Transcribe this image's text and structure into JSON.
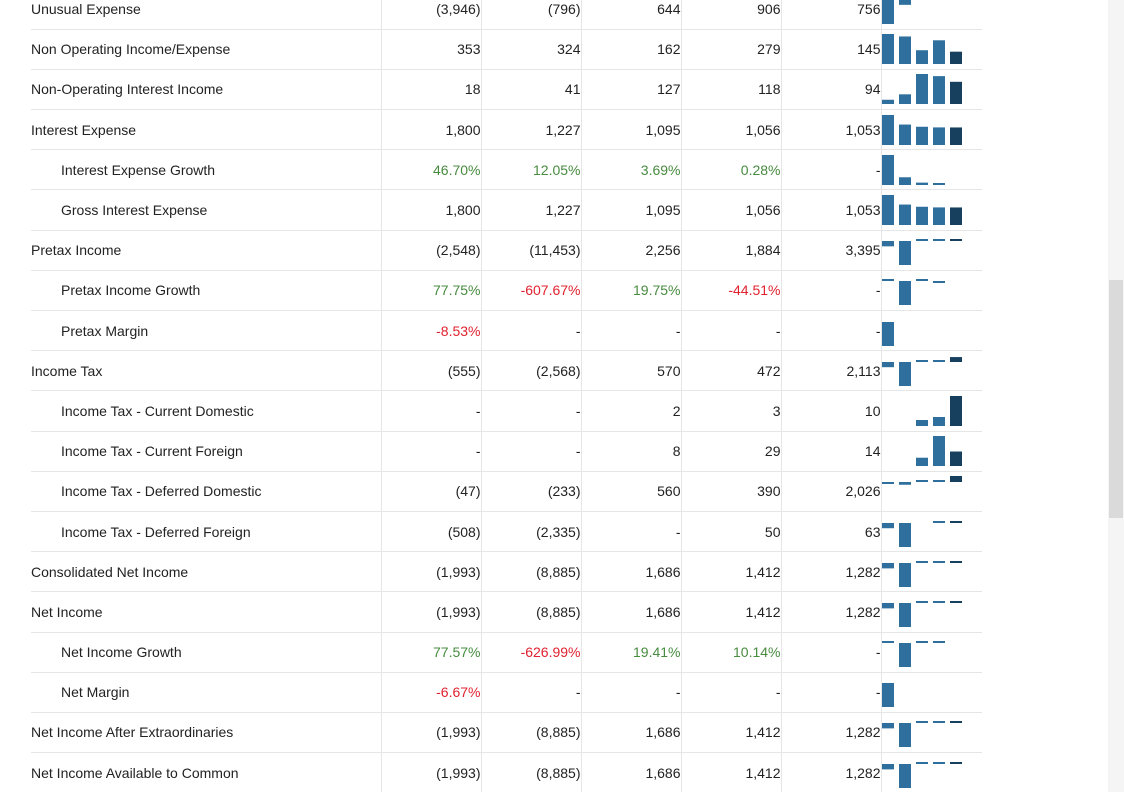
{
  "colors": {
    "bar": "#2e6f9e",
    "bar_latest": "#17405f",
    "positive": "#478b3f",
    "negative": "#e0212f",
    "text": "#222222",
    "border": "#e6e6e6"
  },
  "rows": [
    {
      "label": "Unusual Expense",
      "indent": false,
      "type": "num",
      "values": [
        "(3,946)",
        "(796)",
        "644",
        "906",
        "756"
      ],
      "spark": [
        -3946,
        -796,
        644,
        906,
        756
      ]
    },
    {
      "label": "Non Operating Income/Expense",
      "indent": false,
      "type": "num",
      "values": [
        "353",
        "324",
        "162",
        "279",
        "145"
      ],
      "spark": [
        353,
        324,
        162,
        279,
        145
      ]
    },
    {
      "label": "Non-Operating Interest Income",
      "indent": false,
      "type": "num",
      "values": [
        "18",
        "41",
        "127",
        "118",
        "94"
      ],
      "spark": [
        18,
        41,
        127,
        118,
        94
      ]
    },
    {
      "label": "Interest Expense",
      "indent": false,
      "type": "num",
      "values": [
        "1,800",
        "1,227",
        "1,095",
        "1,056",
        "1,053"
      ],
      "spark": [
        1800,
        1227,
        1095,
        1056,
        1053
      ]
    },
    {
      "label": "Interest Expense Growth",
      "indent": true,
      "type": "pct",
      "values": [
        "46.70%",
        "12.05%",
        "3.69%",
        "0.28%",
        "-"
      ],
      "spark": [
        46.7,
        12.05,
        3.69,
        0.28,
        null
      ]
    },
    {
      "label": "Gross Interest Expense",
      "indent": true,
      "type": "num",
      "values": [
        "1,800",
        "1,227",
        "1,095",
        "1,056",
        "1,053"
      ],
      "spark": [
        1800,
        1227,
        1095,
        1056,
        1053
      ]
    },
    {
      "label": "Pretax Income",
      "indent": false,
      "type": "num",
      "values": [
        "(2,548)",
        "(11,453)",
        "2,256",
        "1,884",
        "3,395"
      ],
      "spark": [
        -2548,
        -11453,
        2256,
        1884,
        3395
      ]
    },
    {
      "label": "Pretax Income Growth",
      "indent": true,
      "type": "pct",
      "values": [
        "77.75%",
        "-607.67%",
        "19.75%",
        "-44.51%",
        "-"
      ],
      "spark": [
        77.75,
        -607.67,
        19.75,
        -44.51,
        null
      ]
    },
    {
      "label": "Pretax Margin",
      "indent": true,
      "type": "pct",
      "values": [
        "-8.53%",
        "-",
        "-",
        "-",
        "-"
      ],
      "spark": [
        -8.53,
        null,
        null,
        null,
        null
      ]
    },
    {
      "label": "Income Tax",
      "indent": false,
      "type": "num",
      "values": [
        "(555)",
        "(2,568)",
        "570",
        "472",
        "2,113"
      ],
      "spark": [
        -555,
        -2568,
        570,
        472,
        2113
      ]
    },
    {
      "label": "Income Tax - Current Domestic",
      "indent": true,
      "type": "num",
      "values": [
        "-",
        "-",
        "2",
        "3",
        "10"
      ],
      "spark": [
        null,
        null,
        2,
        3,
        10
      ]
    },
    {
      "label": "Income Tax - Current Foreign",
      "indent": true,
      "type": "num",
      "values": [
        "-",
        "-",
        "8",
        "29",
        "14"
      ],
      "spark": [
        null,
        null,
        8,
        29,
        14
      ]
    },
    {
      "label": "Income Tax - Deferred Domestic",
      "indent": true,
      "type": "num",
      "values": [
        "(47)",
        "(233)",
        "560",
        "390",
        "2,026"
      ],
      "spark": [
        -47,
        -233,
        560,
        390,
        2026
      ]
    },
    {
      "label": "Income Tax - Deferred Foreign",
      "indent": true,
      "type": "num",
      "values": [
        "(508)",
        "(2,335)",
        "-",
        "50",
        "63"
      ],
      "spark": [
        -508,
        -2335,
        null,
        50,
        63
      ]
    },
    {
      "label": "Consolidated Net Income",
      "indent": false,
      "type": "num",
      "values": [
        "(1,993)",
        "(8,885)",
        "1,686",
        "1,412",
        "1,282"
      ],
      "spark": [
        -1993,
        -8885,
        1686,
        1412,
        1282
      ]
    },
    {
      "label": "Net Income",
      "indent": false,
      "type": "num",
      "values": [
        "(1,993)",
        "(8,885)",
        "1,686",
        "1,412",
        "1,282"
      ],
      "spark": [
        -1993,
        -8885,
        1686,
        1412,
        1282
      ]
    },
    {
      "label": "Net Income Growth",
      "indent": true,
      "type": "pct",
      "values": [
        "77.57%",
        "-626.99%",
        "19.41%",
        "10.14%",
        "-"
      ],
      "spark": [
        77.57,
        -626.99,
        19.41,
        10.14,
        null
      ]
    },
    {
      "label": "Net Margin",
      "indent": true,
      "type": "pct",
      "values": [
        "-6.67%",
        "-",
        "-",
        "-",
        "-"
      ],
      "spark": [
        -6.67,
        null,
        null,
        null,
        null
      ]
    },
    {
      "label": "Net Income After Extraordinaries",
      "indent": false,
      "type": "num",
      "values": [
        "(1,993)",
        "(8,885)",
        "1,686",
        "1,412",
        "1,282"
      ],
      "spark": [
        -1993,
        -8885,
        1686,
        1412,
        1282
      ]
    },
    {
      "label": "Net Income Available to Common",
      "indent": false,
      "type": "num",
      "values": [
        "(1,993)",
        "(8,885)",
        "1,686",
        "1,412",
        "1,282"
      ],
      "spark": [
        -1993,
        -8885,
        1686,
        1412,
        1282
      ]
    }
  ]
}
